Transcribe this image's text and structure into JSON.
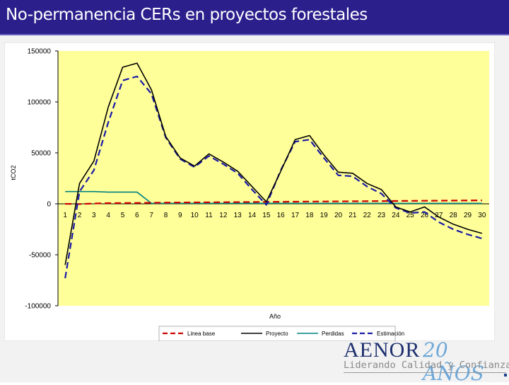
{
  "slide": {
    "title": "No-permanencia CERs en proyectos forestales"
  },
  "logo": {
    "brand": "AENOR",
    "anniversary": "20 AÑOS",
    "tagline": "Liderando Calidad y Confianza"
  },
  "colors": {
    "title_bg": "#2b1f8c",
    "plot_bg": "#ffff99",
    "linea_base": "#cc0000",
    "proyecto": "#000000",
    "perdidas": "#008080",
    "estimacion": "#1a1aa6"
  },
  "chart_data": {
    "type": "line",
    "title": "",
    "xlabel": "Año",
    "ylabel": "tCO2",
    "ylim": [
      -100000,
      150000
    ],
    "yticks": [
      150000,
      100000,
      50000,
      0,
      -50000,
      -100000
    ],
    "ytick_labels": [
      "150000",
      "100000",
      "50000",
      "0",
      "-50000",
      "-100000"
    ],
    "grid": false,
    "legend_position": "bottom",
    "x": [
      1,
      2,
      3,
      4,
      5,
      6,
      7,
      8,
      9,
      10,
      11,
      12,
      13,
      14,
      15,
      16,
      17,
      18,
      19,
      20,
      21,
      22,
      23,
      24,
      25,
      26,
      27,
      28,
      29,
      30
    ],
    "xtick_labels": [
      "1",
      "2",
      "3",
      "4",
      "5",
      "6",
      "7",
      "8",
      "9",
      "10",
      "11",
      "12",
      "13",
      "14",
      "15",
      "16",
      "17",
      "18",
      "19",
      "20",
      "21",
      "22",
      "23",
      "24",
      "25",
      "26",
      "27",
      "28",
      "29",
      "30"
    ],
    "series": [
      {
        "name": "Linea base",
        "style": "dashed",
        "color": "#cc0000",
        "values": [
          0,
          -200,
          300,
          700,
          800,
          900,
          1000,
          1200,
          1300,
          1400,
          1500,
          1600,
          1700,
          1800,
          1900,
          2000,
          2100,
          2200,
          2300,
          2400,
          2500,
          2600,
          2700,
          2800,
          2900,
          3000,
          3100,
          3200,
          3300,
          3400
        ]
      },
      {
        "name": "Proyecto",
        "style": "solid",
        "color": "#000000",
        "values": [
          -60000,
          20000,
          42000,
          95000,
          134000,
          138000,
          112000,
          66000,
          45000,
          37000,
          49000,
          41000,
          32000,
          17000,
          2000,
          32000,
          63000,
          67000,
          48000,
          31000,
          30000,
          20000,
          14000,
          -3000,
          -8000,
          -3000,
          -13000,
          -20000,
          -25000,
          -29000
        ]
      },
      {
        "name": "Perdidas",
        "style": "solid",
        "color": "#008080",
        "values": [
          12000,
          12000,
          12000,
          11500,
          11500,
          11500,
          500,
          500,
          500,
          500,
          500,
          500,
          500,
          500,
          500,
          500,
          500,
          500,
          500,
          500,
          500,
          500,
          500,
          500,
          500,
          500,
          500,
          500,
          500,
          500
        ]
      },
      {
        "name": "Estimación",
        "style": "dashed",
        "color": "#1a1aa6",
        "values": [
          -73000,
          12000,
          33000,
          80000,
          121000,
          125000,
          108000,
          65000,
          44000,
          36000,
          47000,
          39000,
          30000,
          14000,
          -1000,
          33000,
          61000,
          63000,
          45000,
          28000,
          27000,
          17000,
          10000,
          -4000,
          -9000,
          -8000,
          -18000,
          -25000,
          -30000,
          -34000
        ]
      }
    ]
  }
}
